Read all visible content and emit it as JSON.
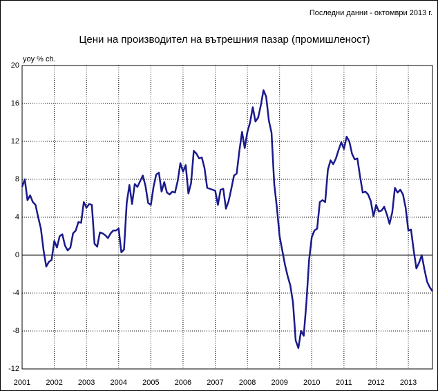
{
  "chart_data": {
    "type": "line",
    "title": "Цени на производител на вътрешния пазар (промишленост)",
    "note": "Последни данни - октомври 2013 г.",
    "y_label": "yoy % ch.",
    "categories": [
      "2001",
      null,
      null,
      null,
      null,
      null,
      null,
      null,
      null,
      null,
      null,
      null,
      "2002",
      null,
      null,
      null,
      null,
      null,
      null,
      null,
      null,
      null,
      null,
      null,
      "2003",
      null,
      null,
      null,
      null,
      null,
      null,
      null,
      null,
      null,
      null,
      null,
      "2004",
      null,
      null,
      null,
      null,
      null,
      null,
      null,
      null,
      null,
      null,
      null,
      "2005",
      null,
      null,
      null,
      null,
      null,
      null,
      null,
      null,
      null,
      null,
      null,
      "2006",
      null,
      null,
      null,
      null,
      null,
      null,
      null,
      null,
      null,
      null,
      null,
      "2007",
      null,
      null,
      null,
      null,
      null,
      null,
      null,
      null,
      null,
      null,
      null,
      "2008",
      null,
      null,
      null,
      null,
      null,
      null,
      null,
      null,
      null,
      null,
      null,
      "2009",
      null,
      null,
      null,
      null,
      null,
      null,
      null,
      null,
      null,
      null,
      null,
      "2010",
      null,
      null,
      null,
      null,
      null,
      null,
      null,
      null,
      null,
      null,
      null,
      "2011",
      null,
      null,
      null,
      null,
      null,
      null,
      null,
      null,
      null,
      null,
      null,
      "2012",
      null,
      null,
      null,
      null,
      null,
      null,
      null,
      null,
      null,
      null,
      null,
      "2013",
      null,
      null,
      null,
      null,
      null,
      null,
      null,
      null,
      null
    ],
    "series": [
      {
        "name": "yoy % ch.",
        "color": "#1a1a8c",
        "values": [
          7.2,
          8.0,
          5.8,
          6.3,
          5.6,
          5.3,
          4.0,
          2.8,
          0.5,
          -1.2,
          -0.7,
          -0.5,
          1.5,
          0.8,
          2.0,
          2.2,
          1.0,
          0.5,
          0.8,
          2.3,
          2.6,
          3.5,
          3.4,
          5.6,
          5.0,
          5.4,
          5.3,
          1.2,
          0.9,
          2.4,
          2.3,
          2.1,
          1.8,
          2.3,
          2.6,
          2.6,
          2.8,
          0.3,
          0.6,
          5.5,
          7.4,
          5.4,
          7.5,
          7.2,
          7.8,
          8.4,
          7.3,
          5.5,
          5.3,
          7.2,
          8.5,
          8.7,
          6.7,
          7.7,
          6.6,
          6.4,
          6.7,
          6.6,
          7.8,
          9.7,
          8.8,
          9.5,
          6.5,
          7.6,
          11.0,
          10.7,
          10.2,
          10.3,
          9.2,
          7.1,
          7.0,
          6.9,
          6.8,
          5.3,
          6.9,
          7.0,
          4.9,
          5.7,
          7.0,
          8.4,
          8.6,
          11.0,
          13.0,
          11.3,
          13.0,
          14.0,
          15.6,
          14.1,
          14.5,
          15.8,
          17.4,
          16.7,
          14.2,
          12.9,
          7.5,
          5.0,
          2.0,
          0.5,
          -1.0,
          -2.2,
          -3.2,
          -5.0,
          -9.0,
          -9.8,
          -8.0,
          -8.5,
          -5.0,
          -0.5,
          1.9,
          2.6,
          2.8,
          5.6,
          5.8,
          5.6,
          9.0,
          10.0,
          9.6,
          10.2,
          11.1,
          11.9,
          11.2,
          12.5,
          12.0,
          10.7,
          10.1,
          10.2,
          8.3,
          6.6,
          6.7,
          6.4,
          5.7,
          4.1,
          5.3,
          4.6,
          4.7,
          5.1,
          4.3,
          3.3,
          4.5,
          7.1,
          6.6,
          6.9,
          6.4,
          5.0,
          2.6,
          2.7,
          0.5,
          -1.4,
          -0.8,
          0.0,
          -1.5,
          -2.8,
          -3.4,
          -3.8
        ]
      }
    ],
    "ylim": [
      -12,
      20
    ],
    "yticks": [
      -12,
      -8,
      -4,
      0,
      4,
      8,
      12,
      16,
      20
    ],
    "grid": true
  }
}
